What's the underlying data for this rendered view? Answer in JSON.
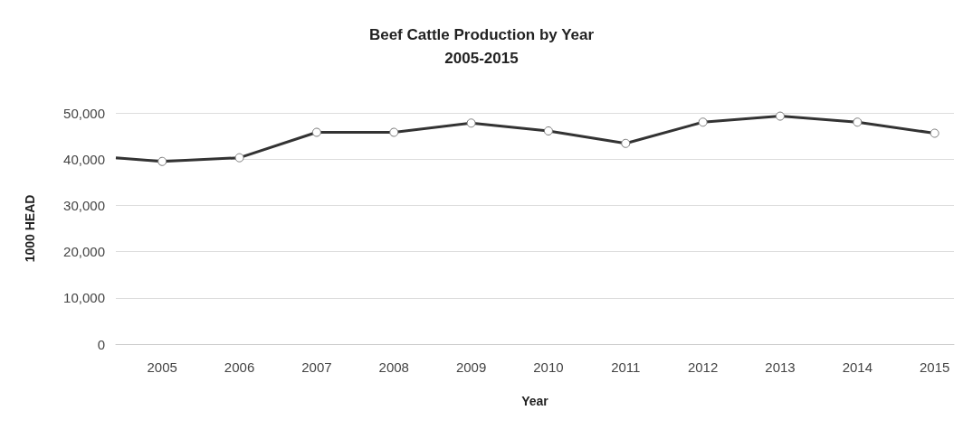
{
  "chart_data": {
    "type": "line",
    "title": "Beef Cattle Production by Year\n2005-2015",
    "xlabel": "Year",
    "ylabel": "1000 HEAD",
    "x": [
      2004.4,
      2005,
      2006,
      2007,
      2008,
      2009,
      2010,
      2011,
      2012,
      2013,
      2014,
      2015
    ],
    "series": [
      {
        "color": "#333333",
        "values": [
          40300,
          39500,
          40300,
          45800,
          45800,
          47800,
          46100,
          43400,
          48000,
          49300,
          48000,
          45600
        ]
      }
    ],
    "xlim": [
      2004.4,
      2015.25
    ],
    "xticks": [
      2005,
      2006,
      2007,
      2008,
      2009,
      2010,
      2011,
      2012,
      2013,
      2014,
      2015
    ],
    "ylim": [
      0,
      50000
    ],
    "yticks": [
      0,
      {
        "value": 10000,
        "label": "10,000"
      },
      {
        "value": 20000,
        "label": "20,000"
      },
      {
        "value": 30000,
        "label": "30,000"
      },
      {
        "value": 40000,
        "label": "40,000"
      },
      {
        "value": 50000,
        "label": "50,000"
      }
    ],
    "grid": "y",
    "marker": "circle",
    "line_style": "solid"
  }
}
